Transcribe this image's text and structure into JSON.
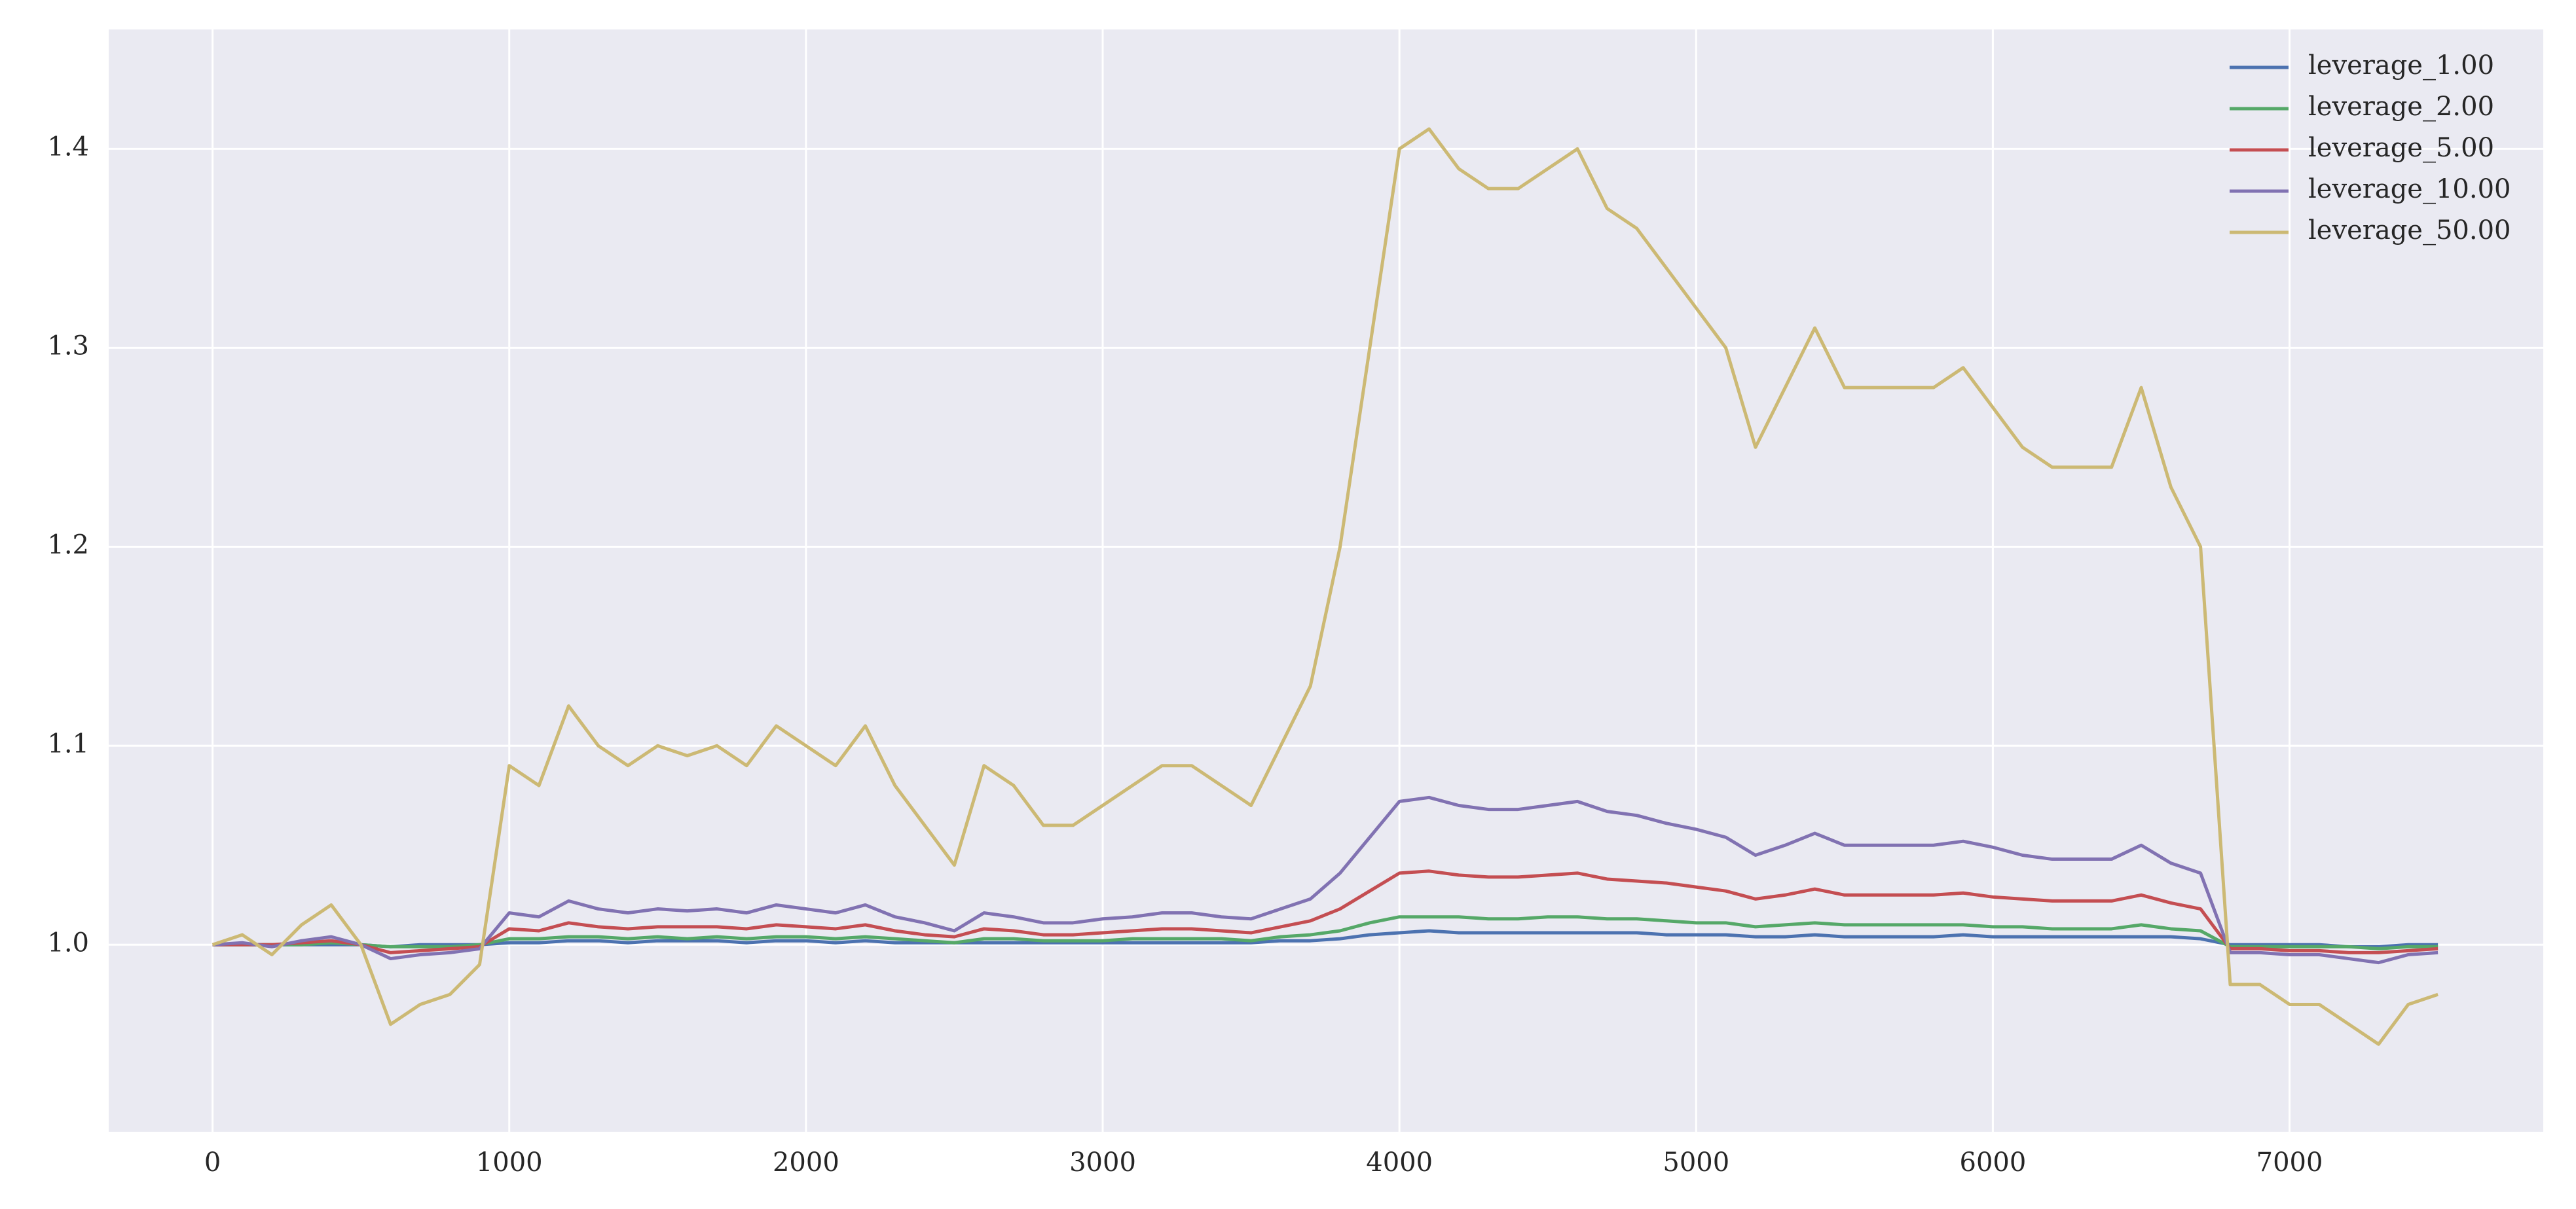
{
  "chart_data": {
    "type": "line",
    "x": [
      0,
      100,
      200,
      300,
      400,
      500,
      600,
      700,
      800,
      900,
      1000,
      1100,
      1200,
      1300,
      1400,
      1500,
      1600,
      1700,
      1800,
      1900,
      2000,
      2100,
      2200,
      2300,
      2400,
      2500,
      2600,
      2700,
      2800,
      2900,
      3000,
      3100,
      3200,
      3300,
      3400,
      3500,
      3600,
      3700,
      3800,
      3900,
      4000,
      4100,
      4200,
      4300,
      4400,
      4500,
      4600,
      4700,
      4800,
      4900,
      5000,
      5100,
      5200,
      5300,
      5400,
      5500,
      5600,
      5700,
      5800,
      5900,
      6000,
      6100,
      6200,
      6300,
      6400,
      6500,
      6600,
      6700,
      6800,
      6900,
      7000,
      7100,
      7200,
      7300,
      7400,
      7500
    ],
    "series": [
      {
        "name": "leverage_1.00",
        "color": "#4c72b0",
        "values": [
          1.0,
          1.0,
          1.0,
          1.0,
          1.0,
          1.0,
          0.999,
          1.0,
          1.0,
          1.0,
          1.001,
          1.001,
          1.002,
          1.002,
          1.001,
          1.002,
          1.002,
          1.002,
          1.001,
          1.002,
          1.002,
          1.001,
          1.002,
          1.001,
          1.001,
          1.001,
          1.001,
          1.001,
          1.001,
          1.001,
          1.001,
          1.001,
          1.001,
          1.001,
          1.001,
          1.001,
          1.002,
          1.002,
          1.003,
          1.005,
          1.006,
          1.007,
          1.006,
          1.006,
          1.006,
          1.006,
          1.006,
          1.006,
          1.006,
          1.005,
          1.005,
          1.005,
          1.004,
          1.004,
          1.005,
          1.004,
          1.004,
          1.004,
          1.004,
          1.005,
          1.004,
          1.004,
          1.004,
          1.004,
          1.004,
          1.004,
          1.004,
          1.003,
          1.0,
          1.0,
          1.0,
          1.0,
          0.999,
          0.999,
          1.0,
          1.0
        ]
      },
      {
        "name": "leverage_2.00",
        "color": "#55a868",
        "values": [
          1.0,
          1.0,
          1.0,
          1.0,
          1.001,
          1.0,
          0.999,
          0.999,
          0.999,
          1.0,
          1.003,
          1.003,
          1.004,
          1.004,
          1.003,
          1.004,
          1.003,
          1.004,
          1.003,
          1.004,
          1.004,
          1.003,
          1.004,
          1.003,
          1.002,
          1.001,
          1.003,
          1.003,
          1.002,
          1.002,
          1.002,
          1.003,
          1.003,
          1.003,
          1.003,
          1.002,
          1.004,
          1.005,
          1.007,
          1.011,
          1.014,
          1.014,
          1.014,
          1.013,
          1.013,
          1.014,
          1.014,
          1.013,
          1.013,
          1.012,
          1.011,
          1.011,
          1.009,
          1.01,
          1.011,
          1.01,
          1.01,
          1.01,
          1.01,
          1.01,
          1.009,
          1.009,
          1.008,
          1.008,
          1.008,
          1.01,
          1.008,
          1.007,
          0.999,
          0.999,
          0.999,
          0.999,
          0.999,
          0.998,
          0.999,
          0.999
        ]
      },
      {
        "name": "leverage_5.00",
        "color": "#c44e52",
        "values": [
          1.0,
          1.0,
          1.0,
          1.001,
          1.002,
          1.0,
          0.996,
          0.997,
          0.998,
          0.999,
          1.008,
          1.007,
          1.011,
          1.009,
          1.008,
          1.009,
          1.009,
          1.009,
          1.008,
          1.01,
          1.009,
          1.008,
          1.01,
          1.007,
          1.005,
          1.004,
          1.008,
          1.007,
          1.005,
          1.005,
          1.006,
          1.007,
          1.008,
          1.008,
          1.007,
          1.006,
          1.009,
          1.012,
          1.018,
          1.027,
          1.036,
          1.037,
          1.035,
          1.034,
          1.034,
          1.035,
          1.036,
          1.033,
          1.032,
          1.031,
          1.029,
          1.027,
          1.023,
          1.025,
          1.028,
          1.025,
          1.025,
          1.025,
          1.025,
          1.026,
          1.024,
          1.023,
          1.022,
          1.022,
          1.022,
          1.025,
          1.021,
          1.018,
          0.998,
          0.998,
          0.997,
          0.997,
          0.996,
          0.996,
          0.997,
          0.998
        ]
      },
      {
        "name": "leverage_10.00",
        "color": "#8172b2",
        "values": [
          1.0,
          1.001,
          0.999,
          1.002,
          1.004,
          1.0,
          0.993,
          0.995,
          0.996,
          0.998,
          1.016,
          1.014,
          1.022,
          1.018,
          1.016,
          1.018,
          1.017,
          1.018,
          1.016,
          1.02,
          1.018,
          1.016,
          1.02,
          1.014,
          1.011,
          1.007,
          1.016,
          1.014,
          1.011,
          1.011,
          1.013,
          1.014,
          1.016,
          1.016,
          1.014,
          1.013,
          1.018,
          1.023,
          1.036,
          1.054,
          1.072,
          1.074,
          1.07,
          1.068,
          1.068,
          1.07,
          1.072,
          1.067,
          1.065,
          1.061,
          1.058,
          1.054,
          1.045,
          1.05,
          1.056,
          1.05,
          1.05,
          1.05,
          1.05,
          1.052,
          1.049,
          1.045,
          1.043,
          1.043,
          1.043,
          1.05,
          1.041,
          1.036,
          0.996,
          0.996,
          0.995,
          0.995,
          0.993,
          0.991,
          0.995,
          0.996
        ]
      },
      {
        "name": "leverage_50.00",
        "color": "#ccb974",
        "values": [
          1.0,
          1.005,
          0.995,
          1.01,
          1.02,
          1.0,
          0.96,
          0.97,
          0.975,
          0.99,
          1.09,
          1.08,
          1.12,
          1.1,
          1.09,
          1.1,
          1.095,
          1.1,
          1.09,
          1.11,
          1.1,
          1.09,
          1.11,
          1.08,
          1.06,
          1.04,
          1.09,
          1.08,
          1.06,
          1.06,
          1.07,
          1.08,
          1.09,
          1.09,
          1.08,
          1.07,
          1.1,
          1.13,
          1.2,
          1.3,
          1.4,
          1.41,
          1.39,
          1.38,
          1.38,
          1.39,
          1.4,
          1.37,
          1.36,
          1.34,
          1.32,
          1.3,
          1.25,
          1.28,
          1.31,
          1.28,
          1.28,
          1.28,
          1.28,
          1.29,
          1.27,
          1.25,
          1.24,
          1.24,
          1.24,
          1.28,
          1.23,
          1.2,
          0.98,
          0.98,
          0.97,
          0.97,
          0.96,
          0.95,
          0.97,
          0.975
        ]
      }
    ],
    "xlim": [
      -350,
      7855
    ],
    "ylim": [
      0.906,
      1.46
    ],
    "xticks": [
      0,
      1000,
      2000,
      3000,
      4000,
      5000,
      6000,
      7000
    ],
    "yticks": [
      {
        "value": 1,
        "label": "1.0"
      },
      1.1,
      1.2,
      1.3,
      1.4
    ],
    "grid": true,
    "legend": "upper right"
  }
}
